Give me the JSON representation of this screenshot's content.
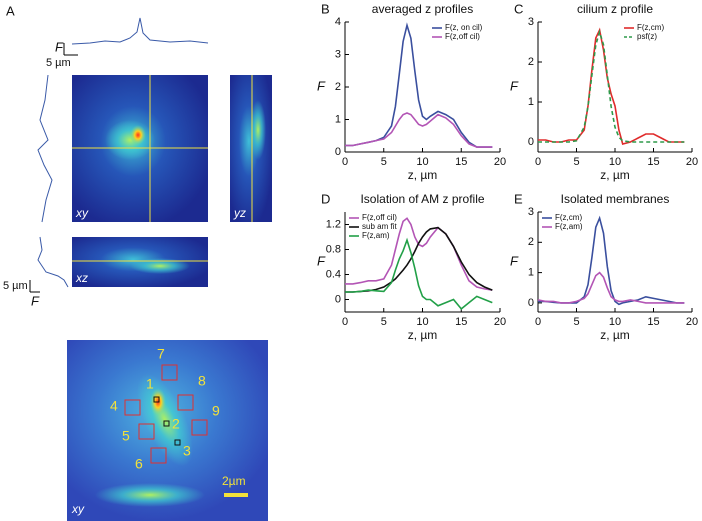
{
  "panel_a": {
    "label": "A",
    "top_profile_f": "F",
    "top_profile_scale": "5 µm",
    "side_profile_scale": "5 µm",
    "side_profile_f": "F",
    "views": [
      "xy",
      "yz",
      "xz"
    ],
    "bottom_view": "xy",
    "roi_numbers": [
      "1",
      "2",
      "3",
      "4",
      "5",
      "6",
      "7",
      "8",
      "9"
    ],
    "scale_bar": "2µm"
  },
  "chart_data": [
    {
      "type": "line",
      "label": "B",
      "title": "averaged z profiles",
      "xlabel": "z, µm",
      "ylabel": "F",
      "legend": "upper right",
      "x": [
        0,
        1,
        2,
        3,
        4,
        5,
        6,
        6.5,
        7,
        7.5,
        8,
        8.5,
        9,
        9.5,
        10,
        10.5,
        11,
        12,
        13,
        14,
        15,
        16,
        17,
        18,
        19
      ],
      "xlim": [
        0,
        20
      ],
      "xticks": [
        0,
        5,
        10,
        15,
        20
      ],
      "ylim": [
        0,
        4
      ],
      "yticks": [
        0,
        1,
        2,
        3,
        4
      ],
      "series": [
        {
          "name": "F(z, on cil)",
          "color": "#3a4f9e",
          "values": [
            0.2,
            0.2,
            0.25,
            0.3,
            0.35,
            0.45,
            0.8,
            1.4,
            2.4,
            3.4,
            3.9,
            3.5,
            2.5,
            1.6,
            1.1,
            1.0,
            1.1,
            1.25,
            1.15,
            1.0,
            0.6,
            0.3,
            0.15,
            0.15,
            0.15
          ]
        },
        {
          "name": "F(z,off cil)",
          "color": "#b355b5",
          "values": [
            0.2,
            0.2,
            0.25,
            0.3,
            0.35,
            0.4,
            0.6,
            0.8,
            1.0,
            1.15,
            1.2,
            1.15,
            1.0,
            0.85,
            0.8,
            0.85,
            0.95,
            1.15,
            1.05,
            0.85,
            0.5,
            0.25,
            0.15,
            0.15,
            0.15
          ]
        }
      ]
    },
    {
      "type": "line",
      "label": "C",
      "title": "cilium z profile",
      "xlabel": "z, µm",
      "ylabel": "F",
      "legend": "upper right",
      "x": [
        0,
        1,
        2,
        3,
        4,
        5,
        6,
        6.5,
        7,
        7.5,
        8,
        8.5,
        9,
        9.5,
        10,
        10.5,
        11,
        12,
        13,
        14,
        15,
        16,
        17,
        18,
        19
      ],
      "xlim": [
        0,
        20
      ],
      "xticks": [
        0,
        5,
        10,
        15,
        20
      ],
      "ylim": [
        -0.25,
        3
      ],
      "yticks": [
        0,
        1,
        2,
        3
      ],
      "series": [
        {
          "name": "F(z,cm)",
          "color": "#e02b2b",
          "values": [
            0.05,
            0.05,
            0,
            0,
            0.05,
            0.05,
            0.3,
            0.9,
            1.8,
            2.6,
            2.8,
            2.3,
            1.6,
            1.2,
            0.9,
            0.3,
            -0.05,
            0,
            0.1,
            0.2,
            0.2,
            0.1,
            0,
            0,
            0
          ]
        },
        {
          "name": "psf(z)",
          "color": "#2e9a4a",
          "dash": true,
          "values": [
            0,
            0,
            0,
            0,
            0,
            0.03,
            0.37,
            0.89,
            1.67,
            2.43,
            2.75,
            2.43,
            1.67,
            0.89,
            0.37,
            0.12,
            0.03,
            0,
            0,
            0,
            0,
            0,
            0,
            0,
            0
          ]
        }
      ]
    },
    {
      "type": "line",
      "label": "D",
      "title": "Isolation of AM z profile",
      "xlabel": "z, µm",
      "ylabel": "F",
      "legend": "upper left",
      "x": [
        0,
        1,
        2,
        3,
        4,
        5,
        6,
        6.5,
        7,
        7.5,
        8,
        8.5,
        9,
        9.5,
        10,
        10.5,
        11,
        12,
        13,
        14,
        15,
        16,
        17,
        18,
        19
      ],
      "xlim": [
        0,
        20
      ],
      "xticks": [
        0,
        5,
        10,
        15,
        20
      ],
      "ylim": [
        -0.2,
        1.4
      ],
      "yticks": [
        0,
        0.4,
        0.8,
        1.2
      ],
      "series": [
        {
          "name": "F(z,off cil)",
          "color": "#b355b5",
          "values": [
            0.25,
            0.25,
            0.27,
            0.3,
            0.3,
            0.33,
            0.55,
            0.8,
            1.05,
            1.25,
            1.3,
            1.2,
            1.0,
            0.88,
            0.85,
            0.9,
            1.0,
            1.15,
            1.05,
            0.85,
            0.55,
            0.3,
            0.2,
            0.17,
            0.15
          ]
        },
        {
          "name": "sub am fit",
          "color": "#111111",
          "values": [
            0.12,
            0.12,
            0.13,
            0.14,
            0.16,
            0.2,
            0.28,
            0.33,
            0.4,
            0.47,
            0.55,
            0.65,
            0.77,
            0.9,
            1.0,
            1.08,
            1.13,
            1.15,
            1.05,
            0.85,
            0.6,
            0.4,
            0.27,
            0.2,
            0.15
          ]
        },
        {
          "name": "F(z,am)",
          "color": "#22a048",
          "values": [
            0.12,
            0.12,
            0.13,
            0.15,
            0.14,
            0.13,
            0.27,
            0.47,
            0.65,
            0.78,
            0.95,
            0.75,
            0.5,
            0.22,
            0.05,
            0,
            0,
            -0.1,
            -0.05,
            0,
            -0.15,
            -0.05,
            0.05,
            0,
            -0.05
          ]
        }
      ]
    },
    {
      "type": "line",
      "label": "E",
      "title": "Isolated membranes",
      "xlabel": "z, µm",
      "ylabel": "F",
      "legend": "upper left",
      "x": [
        0,
        1,
        2,
        3,
        4,
        5,
        6,
        6.5,
        7,
        7.5,
        8,
        8.5,
        9,
        9.5,
        10,
        10.5,
        11,
        12,
        13,
        14,
        15,
        16,
        17,
        18,
        19
      ],
      "xlim": [
        0,
        20
      ],
      "xticks": [
        0,
        5,
        10,
        15,
        20
      ],
      "ylim": [
        -0.3,
        3
      ],
      "yticks": [
        0,
        1,
        2,
        3
      ],
      "series": [
        {
          "name": "F(z,cm)",
          "color": "#3a4f9e",
          "values": [
            0.05,
            0.05,
            0.02,
            0,
            0,
            0,
            0.2,
            0.6,
            1.5,
            2.5,
            2.8,
            2.3,
            1.2,
            0.4,
            0.05,
            -0.05,
            0,
            0.05,
            0.1,
            0.2,
            0.15,
            0.1,
            0.05,
            0,
            0
          ]
        },
        {
          "name": "F(z,am)",
          "color": "#b355b5",
          "values": [
            0.1,
            0.05,
            0.05,
            0,
            0,
            0.05,
            0.15,
            0.3,
            0.6,
            0.9,
            1.0,
            0.85,
            0.5,
            0.2,
            0.1,
            0.05,
            0.05,
            0.1,
            0.05,
            0,
            0,
            0,
            0,
            0,
            0
          ]
        }
      ]
    }
  ]
}
